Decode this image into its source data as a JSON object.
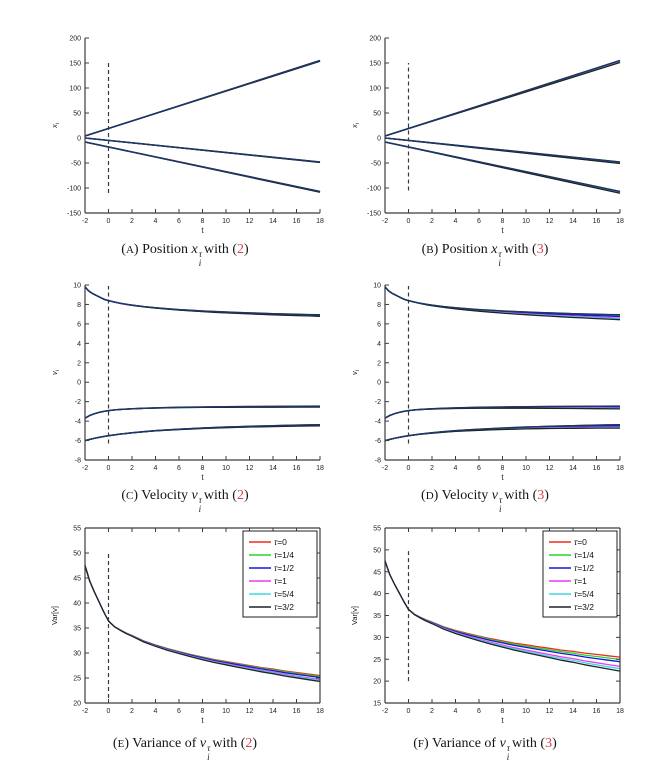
{
  "colors": {
    "ref": "#d8414b",
    "bundle": "#1c3766",
    "axis": "#3c3c3c",
    "dash": "#3a3a3a",
    "text": "#222222",
    "background": "#ffffff"
  },
  "punct": {
    "open": "(",
    "close": ")"
  },
  "legend": {
    "labels": [
      "τ=0",
      "τ=1/4",
      "τ=1/2",
      "τ=1",
      "τ=5/4",
      "τ=3/2"
    ],
    "values": [
      0,
      0.25,
      0.5,
      1,
      1.25,
      1.5
    ],
    "colors": [
      "#f02c1e",
      "#2cd42c",
      "#1616dd",
      "#ee3cee",
      "#38dce6",
      "#222222"
    ],
    "position": "top-right"
  },
  "captions": [
    {
      "letter": "A",
      "prefix": "Position",
      "var": "x",
      "sup": "τ",
      "sub": "i",
      "conn": "with",
      "ref": "2"
    },
    {
      "letter": "B",
      "prefix": "Position",
      "var": "x",
      "sup": "τ",
      "sub": "i",
      "conn": "with",
      "ref": "3"
    },
    {
      "letter": "C",
      "prefix": "Velocity",
      "var": "v",
      "sup": "τ",
      "sub": "i",
      "conn": "with",
      "ref": "2"
    },
    {
      "letter": "D",
      "prefix": "Velocity",
      "var": "v",
      "sup": "τ",
      "sub": "i",
      "conn": "with",
      "ref": "3"
    },
    {
      "letter": "E",
      "prefix": "Variance of",
      "var": "v",
      "sup": "τ",
      "sub": "i",
      "conn": "with",
      "ref": "2"
    },
    {
      "letter": "F",
      "prefix": "Variance of",
      "var": "v",
      "sup": "τ",
      "sub": "i",
      "conn": "with",
      "ref": "3"
    }
  ],
  "chart_data": [
    {
      "id": "a",
      "type": "line",
      "xlabel": "t",
      "ylabel": "x_i",
      "xlim": [
        -2,
        18
      ],
      "ylim": [
        -150,
        200
      ],
      "xticks": [
        -2,
        0,
        2,
        4,
        6,
        8,
        10,
        12,
        14,
        16,
        18
      ],
      "yticks": [
        -150,
        -100,
        -50,
        0,
        50,
        100,
        150,
        200
      ],
      "dash": {
        "x": 0,
        "y1": -110,
        "y2": 150
      },
      "box": false,
      "overlay": true,
      "legend": false,
      "groups": [
        {
          "spread": 1.5,
          "points": [
            [
              -2,
              4
            ],
            [
              18,
              155
            ]
          ]
        },
        {
          "spread": 1.0,
          "points": [
            [
              -2,
              0
            ],
            [
              18,
              -48
            ]
          ]
        },
        {
          "spread": 1.5,
          "points": [
            [
              -2,
              -8
            ],
            [
              18,
              -107
            ]
          ]
        }
      ]
    },
    {
      "id": "b",
      "type": "line",
      "xlabel": "t",
      "ylabel": "x_i",
      "xlim": [
        -2,
        18
      ],
      "ylim": [
        -150,
        200
      ],
      "xticks": [
        -2,
        0,
        2,
        4,
        6,
        8,
        10,
        12,
        14,
        16,
        18
      ],
      "yticks": [
        -150,
        -100,
        -50,
        0,
        50,
        100,
        150,
        200
      ],
      "dash": {
        "x": 0,
        "y1": -105,
        "y2": 150
      },
      "box": false,
      "overlay": true,
      "legend": false,
      "groups": [
        {
          "spread": 4.0,
          "points": [
            [
              -2,
              4
            ],
            [
              18,
              155
            ]
          ]
        },
        {
          "spread": 3.0,
          "points": [
            [
              -2,
              0
            ],
            [
              18,
              -48
            ]
          ]
        },
        {
          "spread": 3.5,
          "points": [
            [
              -2,
              -8
            ],
            [
              18,
              -107
            ]
          ]
        }
      ]
    },
    {
      "id": "c",
      "type": "line",
      "xlabel": "t",
      "ylabel": "v_i",
      "xlim": [
        -2,
        18
      ],
      "ylim": [
        -8,
        10
      ],
      "xticks": [
        -2,
        0,
        2,
        4,
        6,
        8,
        10,
        12,
        14,
        16,
        18
      ],
      "yticks": [
        -8,
        -6,
        -4,
        -2,
        0,
        2,
        4,
        6,
        8,
        10
      ],
      "dash": {
        "x": 0,
        "y1": -6.3,
        "y2": 9.9
      },
      "box": false,
      "overlay": true,
      "legend": false,
      "groups": [
        {
          "spread": 0.15,
          "points": [
            [
              -2,
              9.8
            ],
            [
              -1.7,
              9.4
            ],
            [
              -1.4,
              9.15
            ],
            [
              -1,
              8.9
            ],
            [
              -0.6,
              8.65
            ],
            [
              -0.3,
              8.5
            ],
            [
              0,
              8.4
            ],
            [
              0.5,
              8.25
            ],
            [
              1,
              8.12
            ],
            [
              1.5,
              8.02
            ],
            [
              2,
              7.93
            ],
            [
              3,
              7.78
            ],
            [
              4,
              7.66
            ],
            [
              5,
              7.56
            ],
            [
              6,
              7.47
            ],
            [
              7,
              7.4
            ],
            [
              8,
              7.33
            ],
            [
              9,
              7.27
            ],
            [
              10,
              7.22
            ],
            [
              11,
              7.17
            ],
            [
              12,
              7.13
            ],
            [
              13,
              7.09
            ],
            [
              14,
              7.05
            ],
            [
              15,
              7.02
            ],
            [
              16,
              6.99
            ],
            [
              17,
              6.96
            ],
            [
              18,
              6.93
            ]
          ]
        },
        {
          "spread": 0.1,
          "points": [
            [
              -2,
              -3.7
            ],
            [
              -1.6,
              -3.42
            ],
            [
              -1.2,
              -3.24
            ],
            [
              -0.8,
              -3.1
            ],
            [
              -0.4,
              -3.0
            ],
            [
              0,
              -2.92
            ],
            [
              0.5,
              -2.85
            ],
            [
              1,
              -2.8
            ],
            [
              2,
              -2.73
            ],
            [
              3,
              -2.68
            ],
            [
              4,
              -2.64
            ],
            [
              6,
              -2.58
            ],
            [
              8,
              -2.55
            ],
            [
              10,
              -2.52
            ],
            [
              12,
              -2.5
            ],
            [
              14,
              -2.49
            ],
            [
              16,
              -2.47
            ],
            [
              18,
              -2.46
            ]
          ]
        },
        {
          "spread": 0.12,
          "points": [
            [
              -2,
              -6.0
            ],
            [
              -1.5,
              -5.85
            ],
            [
              -1,
              -5.72
            ],
            [
              -0.5,
              -5.6
            ],
            [
              0,
              -5.5
            ],
            [
              1,
              -5.33
            ],
            [
              2,
              -5.2
            ],
            [
              3,
              -5.08
            ],
            [
              4,
              -4.98
            ],
            [
              5,
              -4.9
            ],
            [
              6,
              -4.83
            ],
            [
              7,
              -4.77
            ],
            [
              8,
              -4.71
            ],
            [
              9,
              -4.66
            ],
            [
              10,
              -4.61
            ],
            [
              11,
              -4.57
            ],
            [
              12,
              -4.53
            ],
            [
              13,
              -4.5
            ],
            [
              14,
              -4.47
            ],
            [
              15,
              -4.44
            ],
            [
              16,
              -4.41
            ],
            [
              17,
              -4.39
            ],
            [
              18,
              -4.37
            ]
          ]
        }
      ]
    },
    {
      "id": "d",
      "type": "line",
      "xlabel": "t",
      "ylabel": "v_i",
      "xlim": [
        -2,
        18
      ],
      "ylim": [
        -8,
        10
      ],
      "xticks": [
        -2,
        0,
        2,
        4,
        6,
        8,
        10,
        12,
        14,
        16,
        18
      ],
      "yticks": [
        -8,
        -6,
        -4,
        -2,
        0,
        2,
        4,
        6,
        8,
        10
      ],
      "dash": {
        "x": 0,
        "y1": -6.3,
        "y2": 9.9
      },
      "box": false,
      "overlay": true,
      "legend": false,
      "groups": [
        {
          "spread": 0.5,
          "points": [
            [
              -2,
              9.8
            ],
            [
              -1.7,
              9.4
            ],
            [
              -1.4,
              9.15
            ],
            [
              -1,
              8.9
            ],
            [
              -0.6,
              8.65
            ],
            [
              -0.3,
              8.5
            ],
            [
              0,
              8.4
            ],
            [
              0.5,
              8.25
            ],
            [
              1,
              8.12
            ],
            [
              1.5,
              8.02
            ],
            [
              2,
              7.93
            ],
            [
              3,
              7.78
            ],
            [
              4,
              7.66
            ],
            [
              5,
              7.56
            ],
            [
              6,
              7.47
            ],
            [
              7,
              7.4
            ],
            [
              8,
              7.33
            ],
            [
              9,
              7.27
            ],
            [
              10,
              7.22
            ],
            [
              11,
              7.17
            ],
            [
              12,
              7.13
            ],
            [
              13,
              7.09
            ],
            [
              14,
              7.05
            ],
            [
              15,
              7.02
            ],
            [
              16,
              6.99
            ],
            [
              17,
              6.96
            ],
            [
              18,
              6.93
            ]
          ]
        },
        {
          "spread": 0.28,
          "points": [
            [
              -2,
              -3.7
            ],
            [
              -1.6,
              -3.42
            ],
            [
              -1.2,
              -3.24
            ],
            [
              -0.8,
              -3.1
            ],
            [
              -0.4,
              -3.0
            ],
            [
              0,
              -2.92
            ],
            [
              0.5,
              -2.85
            ],
            [
              1,
              -2.8
            ],
            [
              2,
              -2.73
            ],
            [
              3,
              -2.68
            ],
            [
              4,
              -2.64
            ],
            [
              6,
              -2.58
            ],
            [
              8,
              -2.55
            ],
            [
              10,
              -2.52
            ],
            [
              12,
              -2.5
            ],
            [
              14,
              -2.49
            ],
            [
              16,
              -2.47
            ],
            [
              18,
              -2.46
            ]
          ]
        },
        {
          "spread": 0.35,
          "points": [
            [
              -2,
              -6.0
            ],
            [
              -1.5,
              -5.85
            ],
            [
              -1,
              -5.72
            ],
            [
              -0.5,
              -5.6
            ],
            [
              0,
              -5.5
            ],
            [
              1,
              -5.33
            ],
            [
              2,
              -5.2
            ],
            [
              3,
              -5.08
            ],
            [
              4,
              -4.98
            ],
            [
              5,
              -4.9
            ],
            [
              6,
              -4.83
            ],
            [
              7,
              -4.77
            ],
            [
              8,
              -4.71
            ],
            [
              9,
              -4.66
            ],
            [
              10,
              -4.61
            ],
            [
              11,
              -4.57
            ],
            [
              12,
              -4.53
            ],
            [
              13,
              -4.5
            ],
            [
              14,
              -4.47
            ],
            [
              15,
              -4.44
            ],
            [
              16,
              -4.41
            ],
            [
              17,
              -4.39
            ],
            [
              18,
              -4.37
            ]
          ]
        }
      ]
    },
    {
      "id": "e",
      "type": "line",
      "xlabel": "t",
      "ylabel": "Var[v]",
      "xlim": [
        -2,
        18
      ],
      "ylim": [
        20,
        55
      ],
      "xticks": [
        -2,
        0,
        2,
        4,
        6,
        8,
        10,
        12,
        14,
        16,
        18
      ],
      "yticks": [
        20,
        25,
        30,
        35,
        40,
        45,
        50,
        55
      ],
      "dash": {
        "x": 0,
        "y1": 21,
        "y2": 50
      },
      "box": true,
      "overlay": false,
      "legend": true,
      "groups": [
        {
          "spread": 1.2,
          "points": [
            [
              -2,
              47.5
            ],
            [
              -1.6,
              44.4
            ],
            [
              -1.2,
              42.2
            ],
            [
              -0.8,
              40.2
            ],
            [
              -0.4,
              38.2
            ],
            [
              0,
              36.4
            ],
            [
              0.5,
              35.3
            ],
            [
              1,
              34.6
            ],
            [
              1.5,
              34.0
            ],
            [
              2,
              33.5
            ],
            [
              3,
              32.4
            ],
            [
              4,
              31.6
            ],
            [
              5,
              30.9
            ],
            [
              6,
              30.3
            ],
            [
              7,
              29.7
            ],
            [
              8,
              29.2
            ],
            [
              9,
              28.7
            ],
            [
              10,
              28.3
            ],
            [
              11,
              27.9
            ],
            [
              12,
              27.5
            ],
            [
              13,
              27.1
            ],
            [
              14,
              26.8
            ],
            [
              15,
              26.4
            ],
            [
              16,
              26.1
            ],
            [
              17,
              25.8
            ],
            [
              18,
              25.5
            ]
          ]
        }
      ]
    },
    {
      "id": "f",
      "type": "line",
      "xlabel": "t",
      "ylabel": "Var[v]",
      "xlim": [
        -2,
        18
      ],
      "ylim": [
        15,
        55
      ],
      "xticks": [
        -2,
        0,
        2,
        4,
        6,
        8,
        10,
        12,
        14,
        16,
        18
      ],
      "yticks": [
        15,
        20,
        25,
        30,
        35,
        40,
        45,
        50,
        55
      ],
      "dash": {
        "x": 0,
        "y1": 20,
        "y2": 50
      },
      "box": true,
      "overlay": false,
      "legend": true,
      "groups": [
        {
          "spread": 3.2,
          "points": [
            [
              -2,
              47.5
            ],
            [
              -1.6,
              44.4
            ],
            [
              -1.2,
              42.2
            ],
            [
              -0.8,
              40.2
            ],
            [
              -0.4,
              38.2
            ],
            [
              0,
              36.4
            ],
            [
              0.5,
              35.3
            ],
            [
              1,
              34.6
            ],
            [
              1.5,
              34.0
            ],
            [
              2,
              33.5
            ],
            [
              3,
              32.4
            ],
            [
              4,
              31.6
            ],
            [
              5,
              30.9
            ],
            [
              6,
              30.3
            ],
            [
              7,
              29.7
            ],
            [
              8,
              29.2
            ],
            [
              9,
              28.7
            ],
            [
              10,
              28.3
            ],
            [
              11,
              27.9
            ],
            [
              12,
              27.5
            ],
            [
              13,
              27.1
            ],
            [
              14,
              26.8
            ],
            [
              15,
              26.4
            ],
            [
              16,
              26.1
            ],
            [
              17,
              25.8
            ],
            [
              18,
              25.5
            ]
          ]
        }
      ]
    }
  ]
}
